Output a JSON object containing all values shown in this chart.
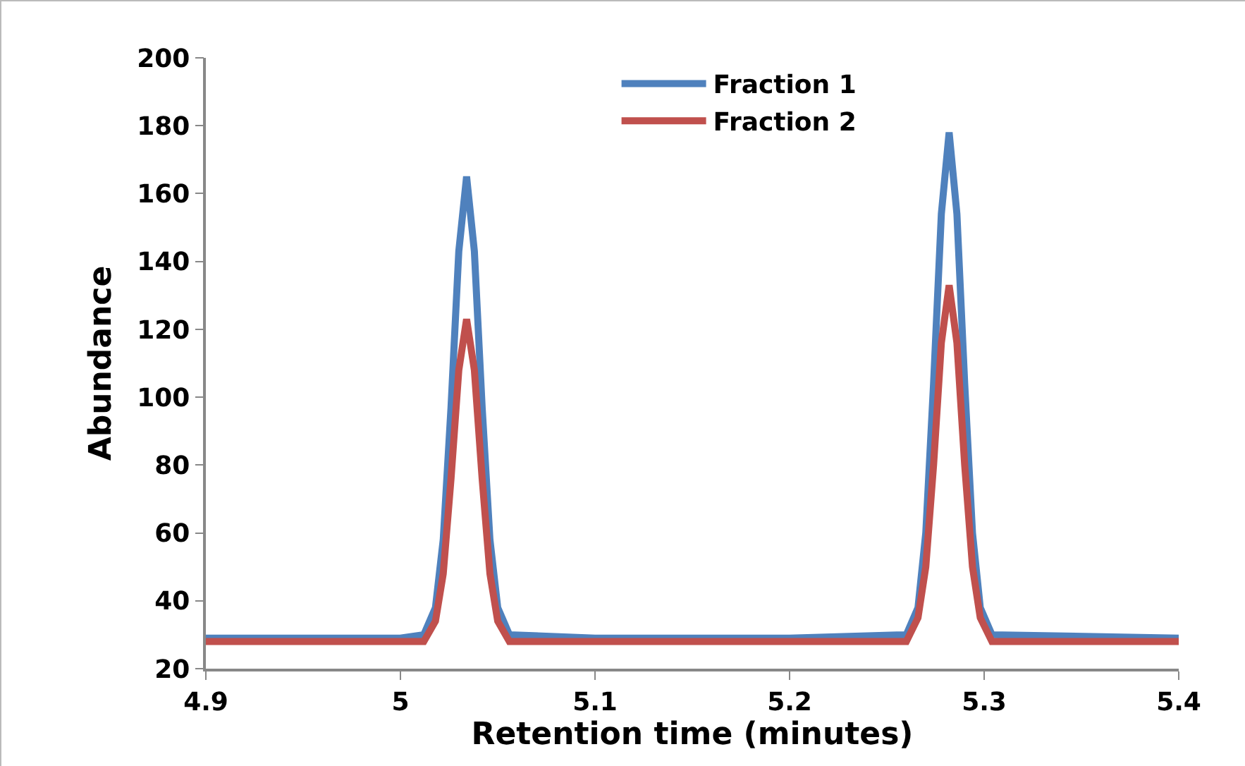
{
  "chart_data": {
    "type": "line",
    "xlabel": "Retention time (minutes)",
    "ylabel": "Abundance",
    "x": [
      4.9,
      5.0,
      5.012,
      5.018,
      5.022,
      5.026,
      5.03,
      5.034,
      5.038,
      5.042,
      5.046,
      5.05,
      5.056,
      5.1,
      5.2,
      5.26,
      5.266,
      5.27,
      5.274,
      5.278,
      5.282,
      5.286,
      5.29,
      5.294,
      5.298,
      5.304,
      5.4
    ],
    "series": [
      {
        "name": "Fraction 1",
        "color": "#4f81bd",
        "values": [
          29,
          29,
          30,
          38,
          58,
          97,
          143,
          165,
          143,
          97,
          58,
          38,
          30,
          29,
          29,
          30,
          38,
          60,
          104,
          154,
          178,
          154,
          104,
          60,
          38,
          30,
          29
        ]
      },
      {
        "name": "Fraction 2",
        "color": "#c0504d",
        "values": [
          28,
          28,
          28,
          34,
          48,
          76,
          108,
          123,
          108,
          76,
          48,
          34,
          28,
          28,
          28,
          28,
          35,
          50,
          80,
          116,
          133,
          116,
          80,
          50,
          35,
          28,
          28
        ]
      }
    ],
    "xlim": [
      4.9,
      5.4
    ],
    "xticks": [
      4.9,
      5,
      5.1,
      5.2,
      5.3,
      5.4
    ],
    "ylim": [
      20,
      200
    ],
    "yticks": [
      20,
      40,
      60,
      80,
      100,
      120,
      140,
      160,
      180,
      200
    ],
    "grid": false,
    "legend": "top",
    "marker": "none",
    "line_style": "solid"
  }
}
